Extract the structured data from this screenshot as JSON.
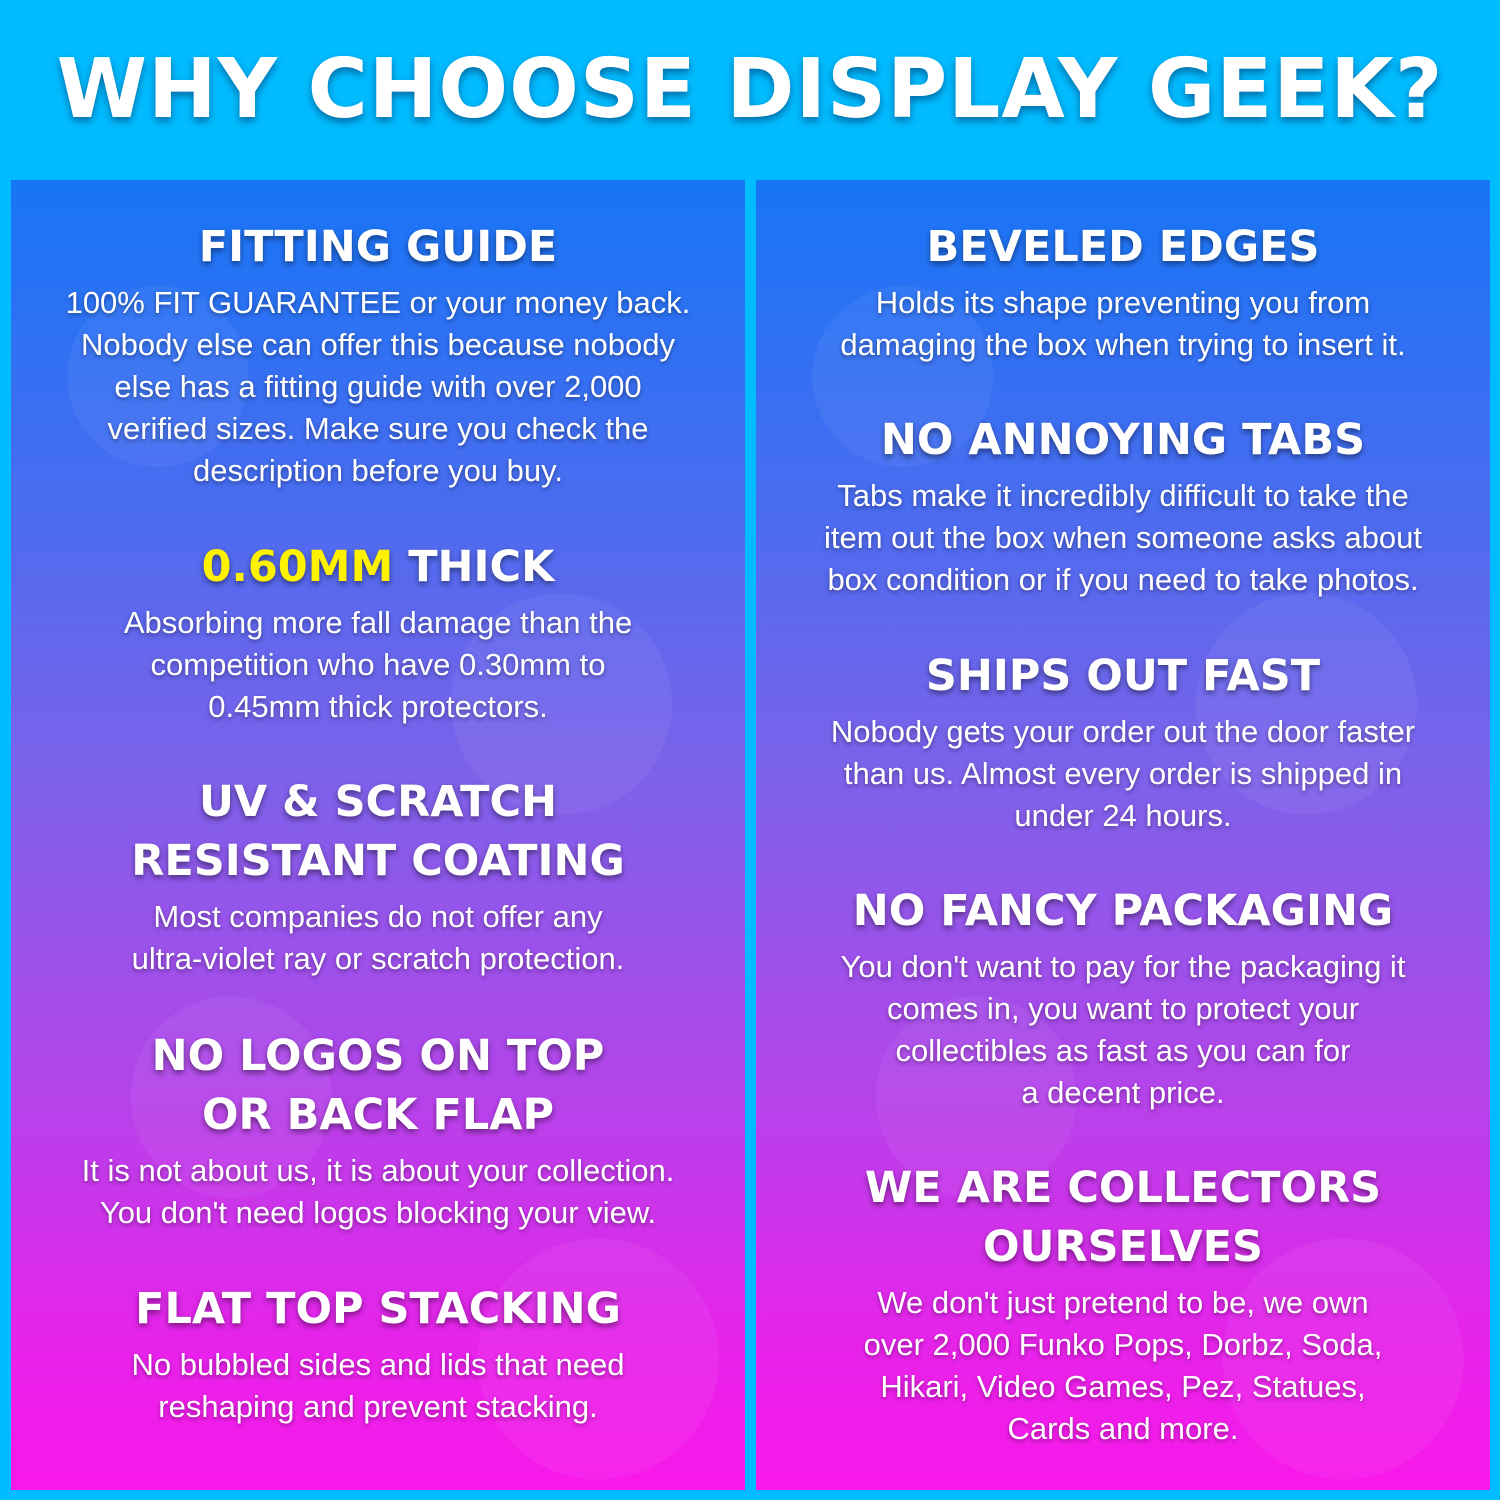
{
  "title": "WHY CHOOSE DISPLAY GEEK?",
  "colors": {
    "background": "#00bcff",
    "highlight": "#fff200",
    "gradient_top": "#1775f6",
    "gradient_bottom": "#f918ea"
  },
  "left": [
    {
      "heading": [
        "FITTING GUIDE"
      ],
      "body": [
        "100% FIT GUARANTEE or your money back.",
        "Nobody else can offer this because nobody",
        "else has a fitting guide with over 2,000",
        "verified sizes. Make sure you check the",
        "description before you buy."
      ]
    },
    {
      "heading_highlight": "0.60MM",
      "heading_rest": " THICK",
      "body": [
        "Absorbing more fall damage than the",
        "competition who have 0.30mm to",
        "0.45mm thick protectors."
      ]
    },
    {
      "heading": [
        "UV & SCRATCH",
        "RESISTANT COATING"
      ],
      "body": [
        "Most companies do not offer any",
        "ultra-violet ray or scratch protection."
      ]
    },
    {
      "heading": [
        "NO LOGOS ON TOP",
        "OR BACK FLAP"
      ],
      "body": [
        "It is not about us, it is about your collection.",
        "You don't need logos blocking your view."
      ]
    },
    {
      "heading": [
        "FLAT TOP STACKING"
      ],
      "body": [
        "No bubbled sides and lids that need",
        "reshaping and prevent stacking."
      ]
    }
  ],
  "right": [
    {
      "heading": [
        "BEVELED EDGES"
      ],
      "body": [
        "Holds its shape preventing you from",
        "damaging the box when trying to insert it."
      ]
    },
    {
      "heading": [
        "NO ANNOYING TABS"
      ],
      "body": [
        "Tabs make it incredibly difficult to take the",
        "item out the box when someone asks about",
        "box condition or if you need to take photos."
      ]
    },
    {
      "heading": [
        "SHIPS OUT FAST"
      ],
      "body": [
        "Nobody gets your order out the door faster",
        "than us. Almost every order is shipped in",
        "under 24 hours."
      ]
    },
    {
      "heading": [
        "NO FANCY PACKAGING"
      ],
      "body": [
        "You don't want to pay for the packaging it",
        "comes in, you want to protect your",
        "collectibles as fast as you can for",
        "a decent price."
      ]
    },
    {
      "heading": [
        "WE ARE COLLECTORS",
        "OURSELVES"
      ],
      "body": [
        "We don't just pretend to be, we own",
        "over 2,000 Funko Pops, Dorbz, Soda,",
        "Hikari, Video Games, Pez, Statues,",
        "Cards and more."
      ]
    }
  ]
}
